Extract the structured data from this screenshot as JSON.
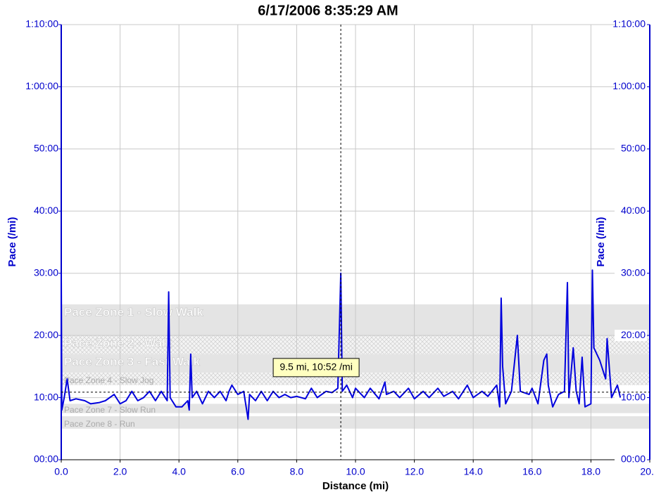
{
  "chart_data": {
    "type": "line",
    "title": "6/17/2006 8:35:29 AM",
    "x_label": "Distance (mi)",
    "y_label": "Pace (/mi)",
    "y2_label": "Pace (/mi)",
    "xlim": [
      0,
      20
    ],
    "xticks": [
      {
        "value": 0,
        "label": "0.0"
      },
      {
        "value": 2,
        "label": "2.0"
      },
      {
        "value": 4,
        "label": "4.0"
      },
      {
        "value": 6,
        "label": "6.0"
      },
      {
        "value": 8,
        "label": "8.0"
      },
      {
        "value": 10,
        "label": "10.0"
      },
      {
        "value": 12,
        "label": "12.0"
      },
      {
        "value": 14,
        "label": "14.0"
      },
      {
        "value": 16,
        "label": "16.0"
      },
      {
        "value": 18,
        "label": "18.0"
      },
      {
        "value": 20,
        "label": "20.0"
      }
    ],
    "ylim": [
      0,
      70
    ],
    "yticks": [
      {
        "value": 0,
        "label": "00:00"
      },
      {
        "value": 10,
        "label": "10:00"
      },
      {
        "value": 20,
        "label": "20:00"
      },
      {
        "value": 30,
        "label": "30:00"
      },
      {
        "value": 40,
        "label": "40:00"
      },
      {
        "value": 50,
        "label": "50:00"
      },
      {
        "value": 60,
        "label": "1:00:00"
      },
      {
        "value": 70,
        "label": "1:10:00"
      }
    ],
    "y2lim": [
      0,
      70
    ],
    "y2ticks": [
      {
        "value": 0,
        "label": "00:00"
      },
      {
        "value": 10,
        "label": "10:00"
      },
      {
        "value": 20,
        "label": "20:00"
      },
      {
        "value": 30,
        "label": "30:00"
      },
      {
        "value": 40,
        "label": "40:00"
      },
      {
        "value": 50,
        "label": "50:00"
      },
      {
        "value": 60,
        "label": "1:00:00"
      },
      {
        "value": 70,
        "label": "1:10:00"
      }
    ],
    "grid": true,
    "zones": [
      {
        "name": "Pace Zone 1 - Slow Walk",
        "low": 20,
        "high": 25,
        "hatched": false
      },
      {
        "name": "Pace Zone 2 - Walk",
        "low": 17,
        "high": 20,
        "hatched": true
      },
      {
        "name": "Pace Zone 3 - Fast Walk",
        "low": 14,
        "high": 17,
        "hatched": false
      },
      {
        "name": "Pace Zone 4 - Slow Jog",
        "low": 12,
        "high": 14,
        "hatched": true
      },
      {
        "name": "Pace Zone 7 - Slow Run",
        "low": 7.5,
        "high": 9,
        "hatched": false
      },
      {
        "name": "Pace Zone 8 - Run",
        "low": 5,
        "high": 7,
        "hatched": false
      }
    ],
    "cursor": {
      "x": 9.5,
      "y": 10.87,
      "label": "9.5 mi, 10:52 /mi"
    },
    "series": [
      {
        "color": "#0000dd",
        "x": [
          0,
          0.02,
          0.1,
          0.2,
          0.3,
          0.5,
          0.8,
          1.0,
          1.3,
          1.5,
          1.8,
          2.0,
          2.2,
          2.4,
          2.6,
          2.8,
          3.0,
          3.2,
          3.4,
          3.6,
          3.65,
          3.7,
          3.9,
          4.1,
          4.3,
          4.35,
          4.4,
          4.45,
          4.6,
          4.8,
          5.0,
          5.2,
          5.4,
          5.6,
          5.7,
          5.8,
          6.0,
          6.2,
          6.35,
          6.4,
          6.6,
          6.8,
          7.0,
          7.2,
          7.4,
          7.6,
          7.8,
          8.0,
          8.3,
          8.5,
          8.7,
          9.0,
          9.2,
          9.4,
          9.5,
          9.55,
          9.7,
          9.9,
          10.0,
          10.3,
          10.5,
          10.8,
          11.0,
          11.05,
          11.3,
          11.5,
          11.8,
          12.0,
          12.3,
          12.5,
          12.8,
          13.0,
          13.3,
          13.5,
          13.8,
          14.0,
          14.3,
          14.5,
          14.8,
          14.9,
          14.95,
          15.0,
          15.1,
          15.3,
          15.5,
          15.6,
          15.9,
          16.0,
          16.2,
          16.4,
          16.5,
          16.55,
          16.7,
          16.9,
          17.1,
          17.2,
          17.25,
          17.4,
          17.5,
          17.6,
          17.7,
          17.8,
          18.0,
          18.05,
          18.1,
          18.3,
          18.5,
          18.55,
          18.7,
          18.9,
          19.0
        ],
        "values": [
          30,
          8,
          10,
          13,
          9.5,
          9.8,
          9.5,
          9.0,
          9.2,
          9.5,
          10.5,
          9.0,
          9.5,
          11,
          9.5,
          10,
          11,
          9.5,
          11,
          9.5,
          27,
          10,
          8.5,
          8.5,
          9.5,
          8,
          17,
          10,
          11,
          9,
          11,
          10,
          11,
          9.5,
          11,
          12,
          10.5,
          11,
          6.5,
          10.5,
          9.5,
          11,
          9.5,
          11,
          10,
          10.5,
          10,
          10.2,
          9.8,
          11.5,
          10,
          11,
          10.8,
          11.5,
          30,
          11,
          12,
          10,
          11.5,
          10,
          11.5,
          9.8,
          12.5,
          10.5,
          11,
          10,
          11.5,
          9.8,
          11,
          10,
          11.5,
          10.2,
          11,
          9.8,
          12,
          10,
          11,
          10.2,
          12,
          8.5,
          26,
          15,
          9,
          11,
          20,
          11,
          10.5,
          11.5,
          9,
          16,
          17,
          12,
          8.5,
          10.5,
          11,
          28.5,
          10,
          18,
          11,
          9,
          16.5,
          8.5,
          9,
          30.5,
          18,
          16,
          13,
          19.5,
          10,
          12,
          10
        ]
      }
    ]
  }
}
